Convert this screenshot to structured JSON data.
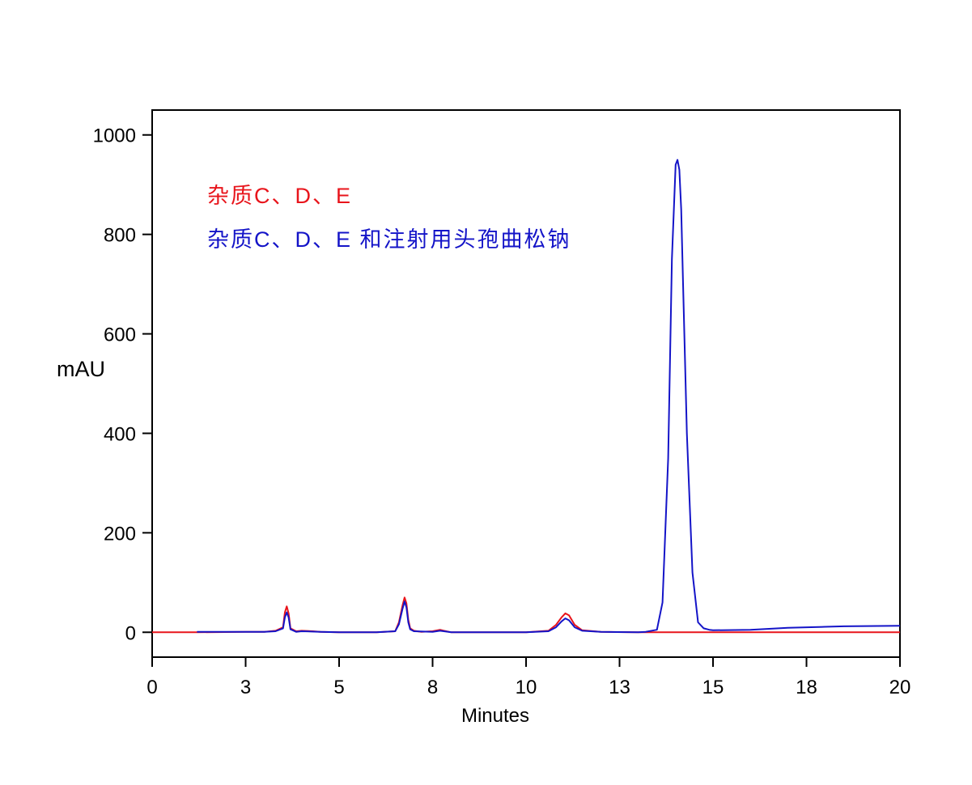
{
  "chart_data": {
    "type": "line",
    "xlabel": "Minutes",
    "ylabel": "mAU",
    "xlim": [
      0,
      20
    ],
    "ylim": [
      -50,
      1050
    ],
    "x_ticks": [
      0,
      2.5,
      5,
      7.5,
      10,
      12.5,
      15,
      17.5,
      20
    ],
    "x_tick_labels": [
      "0",
      "3",
      "5",
      "8",
      "10",
      "13",
      "15",
      "18",
      "20"
    ],
    "y_ticks": [
      0,
      200,
      400,
      600,
      800,
      1000
    ],
    "y_tick_labels": [
      "0",
      "200",
      "400",
      "600",
      "800",
      "1000"
    ],
    "grid": false,
    "legend_position": "top-left",
    "series": [
      {
        "name": "杂质C、D、E",
        "color": "#e8141b",
        "x": [
          0.0,
          1.2,
          2.5,
          3.0,
          3.3,
          3.5,
          3.55,
          3.6,
          3.65,
          3.7,
          3.85,
          4.0,
          4.3,
          4.5,
          5.0,
          6.0,
          6.5,
          6.6,
          6.7,
          6.75,
          6.8,
          6.85,
          6.9,
          7.0,
          7.2,
          7.5,
          7.7,
          7.8,
          8.0,
          8.5,
          9.0,
          10.0,
          10.6,
          10.8,
          10.95,
          11.05,
          11.15,
          11.3,
          11.5,
          12.0,
          13.0,
          14.0,
          15.0,
          17.5,
          20.0
        ],
        "y": [
          0,
          0,
          1,
          1,
          3,
          10,
          40,
          52,
          38,
          8,
          2,
          3,
          2,
          1,
          0,
          0,
          2,
          20,
          55,
          70,
          58,
          25,
          8,
          3,
          1,
          2,
          5,
          3,
          0,
          0,
          0,
          0,
          3,
          15,
          30,
          38,
          34,
          15,
          4,
          1,
          0,
          0,
          0,
          0,
          0
        ]
      },
      {
        "name": "杂质C、D、E 和注射用头孢曲松钠",
        "color": "#1414c8",
        "x": [
          1.2,
          2.0,
          3.0,
          3.3,
          3.5,
          3.55,
          3.6,
          3.65,
          3.7,
          3.85,
          4.0,
          4.5,
          5.0,
          6.0,
          6.5,
          6.6,
          6.7,
          6.75,
          6.8,
          6.85,
          6.9,
          7.0,
          7.5,
          7.7,
          8.0,
          9.0,
          10.0,
          10.6,
          10.8,
          10.95,
          11.05,
          11.15,
          11.3,
          11.5,
          12.0,
          13.0,
          13.2,
          13.5,
          13.65,
          13.8,
          13.9,
          14.0,
          14.05,
          14.1,
          14.15,
          14.2,
          14.3,
          14.45,
          14.6,
          14.75,
          14.9,
          15.0,
          16.0,
          16.5,
          17.0,
          18.0,
          18.5,
          20.0
        ],
        "y": [
          1,
          1,
          1,
          2,
          8,
          30,
          40,
          30,
          6,
          1,
          2,
          1,
          0,
          0,
          2,
          16,
          48,
          62,
          50,
          20,
          6,
          2,
          1,
          3,
          0,
          0,
          0,
          2,
          10,
          22,
          28,
          24,
          10,
          3,
          1,
          0,
          1,
          5,
          60,
          350,
          750,
          940,
          950,
          930,
          850,
          700,
          400,
          120,
          20,
          8,
          5,
          4,
          5,
          7,
          9,
          11,
          12,
          13
        ]
      }
    ]
  }
}
